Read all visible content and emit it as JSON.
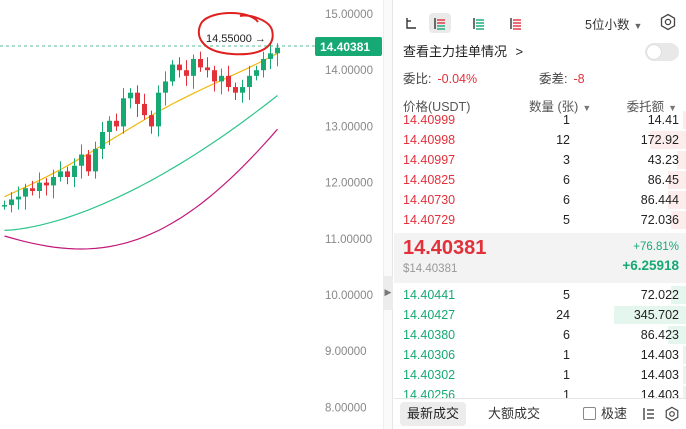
{
  "chart": {
    "current_price_tag": "14.40381",
    "max_marker_label": "14.55000",
    "max_marker_arrow": "→",
    "y_axis_ticks": [
      "15.00000",
      "14.00000",
      "13.00000",
      "12.00000",
      "11.00000",
      "10.00000",
      "9.00000",
      "8.00000"
    ],
    "colors": {
      "up": "#17a974",
      "down": "#e2313b",
      "ma_short": "#f0b90b",
      "ma_mid": "#2ec48b",
      "ma_long": "#c2187a",
      "annotation": "#e0201e"
    }
  },
  "panel": {
    "toolbar": {
      "icons": [
        "order-book-both-icon",
        "order-book-combined-icon",
        "order-book-bids-icon",
        "order-book-asks-icon"
      ],
      "decimal_select": "5位小数",
      "settings_icon": "hexagon-gear-icon"
    },
    "depth_toggle_label": "查看主力挂单情况",
    "depth_toggle_chevron": ">",
    "ratio": {
      "label": "委比:",
      "value": "-0.04%"
    },
    "diff": {
      "label": "委差:",
      "value": "-8"
    },
    "headers": {
      "price": "价格(USDT)",
      "qty": "数量 (张)",
      "total": "委托额"
    },
    "asks": [
      {
        "price": "14.40999",
        "qty": "1",
        "total": "14.41",
        "fill": 0.04
      },
      {
        "price": "14.40998",
        "qty": "12",
        "total": "172.92",
        "fill": 0.5
      },
      {
        "price": "14.40997",
        "qty": "3",
        "total": "43.23",
        "fill": 0.13
      },
      {
        "price": "14.40825",
        "qty": "6",
        "total": "86.45",
        "fill": 0.25
      },
      {
        "price": "14.40730",
        "qty": "6",
        "total": "86.444",
        "fill": 0.25
      },
      {
        "price": "14.40729",
        "qty": "5",
        "total": "72.036",
        "fill": 0.21
      }
    ],
    "mid": {
      "price": "14.40381",
      "usd": "$14.40381",
      "pct": "+76.81%",
      "change": "+6.25918"
    },
    "bids": [
      {
        "price": "14.40441",
        "qty": "5",
        "total": "72.022",
        "fill": 0.21
      },
      {
        "price": "14.40427",
        "qty": "24",
        "total": "345.702",
        "fill": 1.0
      },
      {
        "price": "14.40380",
        "qty": "6",
        "total": "86.423",
        "fill": 0.25
      },
      {
        "price": "14.40306",
        "qty": "1",
        "total": "14.403",
        "fill": 0.04
      },
      {
        "price": "14.40302",
        "qty": "1",
        "total": "14.403",
        "fill": 0.04
      },
      {
        "price": "14.40256",
        "qty": "1",
        "total": "14.403",
        "fill": 0.04
      }
    ],
    "bottom": {
      "tab_latest": "最新成交",
      "tab_large": "大额成交",
      "speed_label": "极速",
      "icons": [
        "order-layout-icon",
        "hexagon-gear-icon"
      ]
    }
  }
}
